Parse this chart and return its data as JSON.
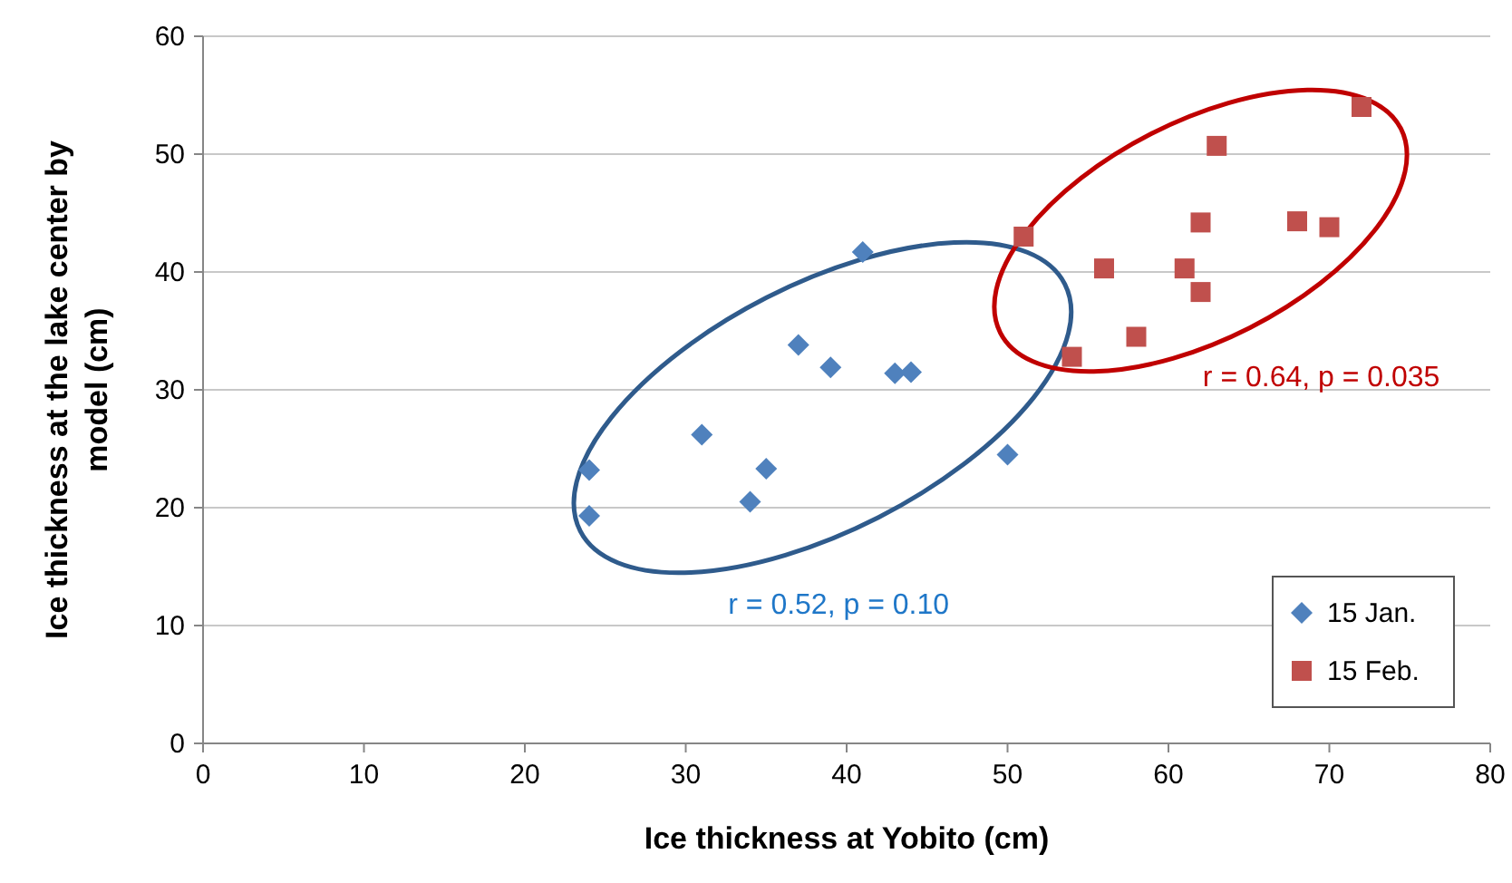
{
  "chart_data": {
    "type": "scatter",
    "xlabel": "Ice thickness at Yobito (cm)",
    "ylabel": "Ice thickness at the lake center by model (cm)",
    "xlim": [
      0,
      80
    ],
    "xticks": [
      0,
      10,
      20,
      30,
      40,
      50,
      60,
      70,
      80
    ],
    "ylim": [
      0,
      60
    ],
    "yticks": [
      0,
      10,
      20,
      30,
      40,
      50,
      60
    ],
    "grid": "y",
    "legend": "bottom right",
    "series": [
      {
        "name": "15 Jan.",
        "color": "#4f81bd",
        "marker": "diamond",
        "x": [
          24,
          24,
          31,
          34,
          35,
          37,
          39,
          41,
          43,
          44,
          50
        ],
        "values": [
          23.2,
          19.3,
          26.2,
          20.5,
          23.3,
          33.8,
          31.9,
          41.7,
          31.4,
          31.5,
          24.5
        ]
      },
      {
        "name": "15 Feb.",
        "color": "#c0504d",
        "marker": "square",
        "x": [
          51,
          54,
          56,
          58,
          61,
          62,
          62,
          63,
          68,
          70,
          72
        ],
        "values": [
          43,
          32.8,
          40.3,
          34.5,
          40.3,
          38.3,
          44.2,
          50.7,
          44.3,
          43.8,
          54
        ]
      }
    ],
    "annotations": [
      "r = 0.52, p = 0.10",
      "r = 0.64, p = 0.035"
    ]
  }
}
